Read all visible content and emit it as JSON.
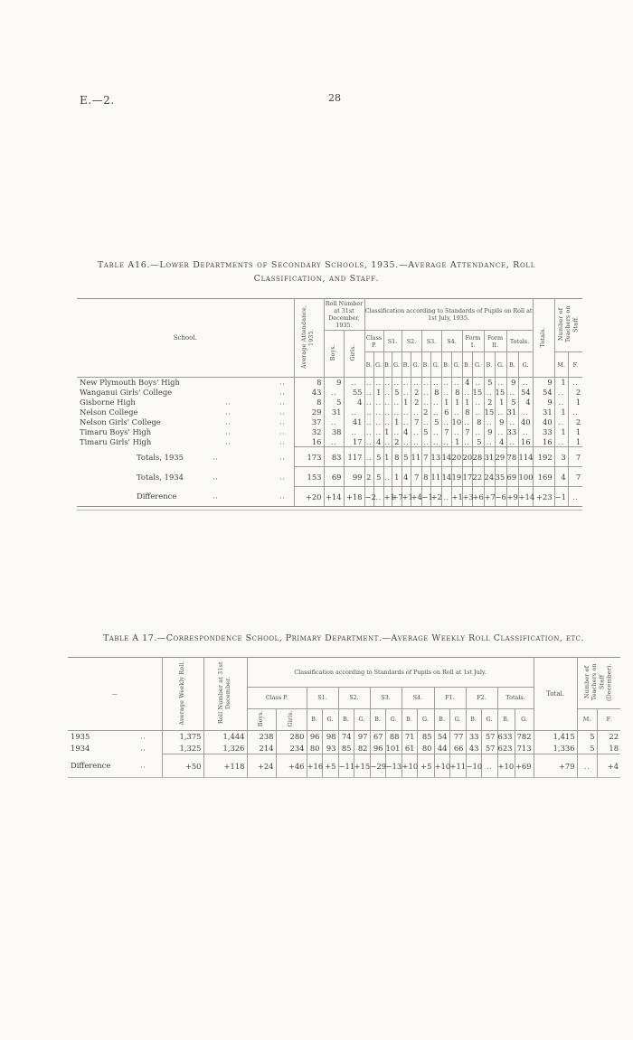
{
  "page": {
    "doc_ref": "E.—2.",
    "page_number": "28"
  },
  "a16": {
    "title_line1": "Table A16.—Lower Departments of Secondary Schools, 1935.—Average Attendance, Roll",
    "title_line2": "Classification, and Staff.",
    "headers": {
      "school": "School.",
      "avg_attendance": "Average Attendance, 1935.",
      "roll_number": "Roll Number at 31st December, 1935.",
      "boys": "Boys.",
      "girls": "Girls.",
      "classification": "Classification according to Standards of Pupils on Roll at 1st July, 1935.",
      "groups": [
        "Class P.",
        "S1.",
        "S2.",
        "S3.",
        "S4.",
        "Form I.",
        "Form II.",
        "Totals."
      ],
      "b_label": "B.",
      "g_label": "G.",
      "totals": "Totals.",
      "teachers": "Number of Teachers on Staff.",
      "m_label": "M.",
      "f_label": "F."
    },
    "rows": [
      {
        "name": "New Plymouth Boys' High",
        "d1": "",
        "d2": "..",
        "cells": [
          "8",
          "9",
          "..",
          "..",
          "..",
          "..",
          "..",
          "..",
          "..",
          "..",
          "..",
          "..",
          "..",
          "4",
          "..",
          "5",
          "..",
          "9",
          "..",
          "9",
          "1",
          ".."
        ]
      },
      {
        "name": "Wanganui Girls' College",
        "d1": "",
        "d2": "..",
        "cells": [
          "43",
          "..",
          "55",
          "..",
          "1",
          "..",
          "5",
          "..",
          "2",
          "..",
          "8",
          "..",
          "8",
          "..",
          "15",
          "..",
          "15",
          "..",
          "54",
          "54",
          "..",
          "2"
        ]
      },
      {
        "name": "Gisborne High",
        "d1": "..",
        "d2": "..",
        "cells": [
          "8",
          "5",
          "4",
          "..",
          "..",
          "..",
          "..",
          "1",
          "2",
          "..",
          "..",
          "1",
          "1",
          "1",
          "..",
          "2",
          "1",
          "5",
          "4",
          "9",
          "..",
          "1"
        ]
      },
      {
        "name": "Nelson College",
        "d1": "..",
        "d2": "..",
        "cells": [
          "29",
          "31",
          "..",
          "..",
          "..",
          "..",
          "..",
          "..",
          "..",
          "2",
          "..",
          "6",
          "..",
          "8",
          "..",
          "15",
          "..",
          "31",
          "..",
          "31",
          "1",
          ".."
        ]
      },
      {
        "name": "Nelson Girls' College",
        "d1": "..",
        "d2": "..",
        "cells": [
          "37",
          "..",
          "41",
          "..",
          "..",
          "..",
          "1",
          "..",
          "7",
          "..",
          "5",
          "..",
          "10",
          "..",
          "8",
          "..",
          "9",
          "..",
          "40",
          "40",
          "..",
          "2"
        ]
      },
      {
        "name": "Timaru Boys' High",
        "d1": "..",
        "d2": "..",
        "cells": [
          "32",
          "38",
          "..",
          "..",
          "..",
          "1",
          "..",
          "4",
          "..",
          "5",
          "..",
          "7",
          "..",
          "7",
          "..",
          "9",
          "..",
          "33",
          "..",
          "33",
          "1",
          "1"
        ]
      },
      {
        "name": "Timaru Girls' High",
        "d1": "..",
        "d2": "..",
        "cells": [
          "16",
          "..",
          "17",
          "..",
          "4",
          "..",
          "2",
          "..",
          "..",
          "..",
          "..",
          "..",
          "1",
          "..",
          "5",
          "..",
          "4",
          "..",
          "16",
          "16",
          "..",
          "1"
        ]
      }
    ],
    "summary": [
      {
        "name": "Totals, 1935",
        "d1": "..",
        "d2": "..",
        "cells": [
          "173",
          "83",
          "117",
          "..",
          "5",
          "1",
          "8",
          "5",
          "11",
          "7",
          "13",
          "14",
          "20",
          "20",
          "28",
          "31",
          "29",
          "78",
          "114",
          "192",
          "3",
          "7"
        ]
      },
      {
        "name": "Totals, 1934",
        "d1": "..",
        "d2": "..",
        "cells": [
          "153",
          "69",
          "99",
          "2",
          "5",
          "..",
          "1",
          "4",
          "7",
          "8",
          "11",
          "14",
          "19",
          "17",
          "22",
          "24",
          "35",
          "69",
          "100",
          "169",
          "4",
          "7"
        ]
      },
      {
        "name": "Difference",
        "d1": "..",
        "d2": "..",
        "cells": [
          "+20",
          "+14",
          "+18",
          "−2",
          "..",
          "+1",
          "+7",
          "+1",
          "+4",
          "−1",
          "+2",
          "..",
          "+1",
          "+3",
          "+6",
          "+7",
          "−6",
          "+9",
          "+14",
          "+23",
          "−1",
          ".."
        ]
      }
    ]
  },
  "a17": {
    "title": "Table A 17.—Correspondence School, Primary Department.—Average Weekly Roll Classification, etc.",
    "headers": {
      "blank": "—",
      "avg_weekly": "Average Weekly Roll.",
      "roll_number": "Roll Number at 31st December.",
      "boys": "Boys.",
      "girls": "Girls.",
      "classification": "Classification according to Standards of Pupils on Roll at 1st July.",
      "groups": [
        "Class P.",
        "S1.",
        "S2.",
        "S3.",
        "S4.",
        "F1.",
        "F2.",
        "Totals."
      ],
      "b_label": "B.",
      "g_label": "G.",
      "total": "Total.",
      "teachers": "Number of Teachers on Staff (December).",
      "m_label": "M.",
      "f_label": "F."
    },
    "rows": [
      {
        "name": "1935",
        "d1": "..",
        "d2": "",
        "cells": [
          "1,375",
          "1,444",
          "238",
          "280",
          "96",
          "98",
          "74",
          "97",
          "67",
          "88",
          "71",
          "85",
          "54",
          "77",
          "33",
          "57",
          "633",
          "782",
          "1,415",
          "5",
          "22"
        ]
      },
      {
        "name": "1934",
        "d1": "..",
        "d2": "",
        "cells": [
          "1,325",
          "1,326",
          "214",
          "234",
          "80",
          "93",
          "85",
          "82",
          "96",
          "101",
          "61",
          "80",
          "44",
          "66",
          "43",
          "57",
          "623",
          "713",
          "1,336",
          "5",
          "18"
        ]
      }
    ],
    "summary": [
      {
        "name": "Difference",
        "d1": "..",
        "d2": "",
        "cells": [
          "+50",
          "+118",
          "+24",
          "+46",
          "+16",
          "+5",
          "−11",
          "+15",
          "−29",
          "−13",
          "+10",
          "+5",
          "+10",
          "+11",
          "−10",
          "..",
          "+10",
          "+69",
          "+79",
          "..",
          "+4"
        ]
      }
    ]
  }
}
